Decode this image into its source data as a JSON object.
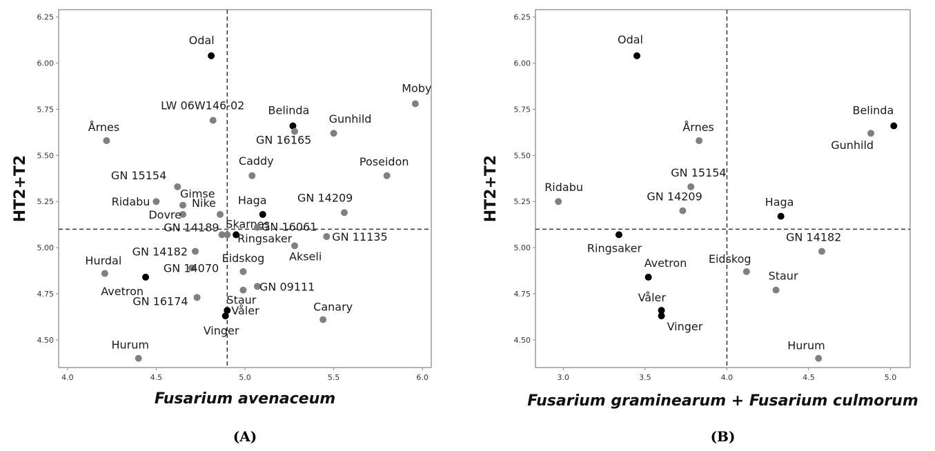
{
  "colors": {
    "highlight": "#000000",
    "normal": "#808080",
    "frame": "#8c8c8c",
    "refline": "#333333"
  },
  "chart_data": [
    {
      "type": "scatter",
      "panel_label": "(A)",
      "xlabel": "Fusarium avenaceum",
      "ylabel": "HT2+T2",
      "xlim": [
        3.95,
        6.05
      ],
      "ylim": [
        4.35,
        6.29
      ],
      "xticks": [
        4.0,
        4.5,
        5.0,
        5.5,
        6.0
      ],
      "xtick_labels": [
        "4.0",
        "4.5",
        "5.0",
        "5.5",
        "6.0"
      ],
      "yticks": [
        4.5,
        4.75,
        5.0,
        5.25,
        5.5,
        5.75,
        6.0,
        6.25
      ],
      "ytick_labels": [
        "4.50",
        "4.75",
        "5.00",
        "5.25",
        "5.50",
        "5.75",
        "6.00",
        "6.25"
      ],
      "vline": 4.9,
      "hline": 5.1,
      "grid": false,
      "points": [
        {
          "label": "Odal",
          "x": 4.81,
          "y": 6.04,
          "highlight": true
        },
        {
          "label": "Moby",
          "x": 5.96,
          "y": 5.78,
          "highlight": false
        },
        {
          "label": "LW 06W146-02",
          "x": 4.82,
          "y": 5.69,
          "highlight": false
        },
        {
          "label": "Belinda",
          "x": 5.27,
          "y": 5.66,
          "highlight": true
        },
        {
          "label": "GN 16165",
          "x": 5.28,
          "y": 5.63,
          "highlight": false
        },
        {
          "label": "Gunhild",
          "x": 5.5,
          "y": 5.62,
          "highlight": false
        },
        {
          "label": "Årnes",
          "x": 4.22,
          "y": 5.58,
          "highlight": false
        },
        {
          "label": "Caddy",
          "x": 5.04,
          "y": 5.39,
          "highlight": false
        },
        {
          "label": "Poseidon",
          "x": 5.8,
          "y": 5.39,
          "highlight": false
        },
        {
          "label": "GN 15154",
          "x": 4.62,
          "y": 5.33,
          "highlight": false
        },
        {
          "label": "Ridabu",
          "x": 4.5,
          "y": 5.25,
          "highlight": false
        },
        {
          "label": "Gimse",
          "x": 4.65,
          "y": 5.23,
          "highlight": false
        },
        {
          "label": "GN 14209",
          "x": 5.56,
          "y": 5.19,
          "highlight": false
        },
        {
          "label": "Nike",
          "x": 4.86,
          "y": 5.18,
          "highlight": false
        },
        {
          "label": "Dovre",
          "x": 4.65,
          "y": 5.18,
          "highlight": false
        },
        {
          "label": "Haga",
          "x": 5.1,
          "y": 5.18,
          "highlight": true
        },
        {
          "label": "Skarnes",
          "x": 4.9,
          "y": 5.07,
          "highlight": false
        },
        {
          "label": "GN 16061",
          "x": 5.07,
          "y": 5.11,
          "highlight": false
        },
        {
          "label": "GN 14189",
          "x": 4.87,
          "y": 5.07,
          "highlight": false
        },
        {
          "label": "Ringsaker",
          "x": 4.95,
          "y": 5.07,
          "highlight": true
        },
        {
          "label": "GN 11135",
          "x": 5.46,
          "y": 5.06,
          "highlight": false
        },
        {
          "label": "Akseli",
          "x": 5.28,
          "y": 5.01,
          "highlight": false
        },
        {
          "label": "GN 14182",
          "x": 4.72,
          "y": 4.98,
          "highlight": false
        },
        {
          "label": "Hurdal",
          "x": 4.21,
          "y": 4.86,
          "highlight": false
        },
        {
          "label": "Eidskog",
          "x": 4.99,
          "y": 4.87,
          "highlight": false
        },
        {
          "label": "GN 14070",
          "x": 4.7,
          "y": 4.89,
          "highlight": false
        },
        {
          "label": "Avetron",
          "x": 4.44,
          "y": 4.84,
          "highlight": true
        },
        {
          "label": "GN 09111",
          "x": 5.07,
          "y": 4.79,
          "highlight": false
        },
        {
          "label": "Staur",
          "x": 4.99,
          "y": 4.77,
          "highlight": false
        },
        {
          "label": "GN 16174",
          "x": 4.73,
          "y": 4.73,
          "highlight": false
        },
        {
          "label": "Våler",
          "x": 4.9,
          "y": 4.66,
          "highlight": true
        },
        {
          "label": "Vinger",
          "x": 4.89,
          "y": 4.63,
          "highlight": true
        },
        {
          "label": "Canary",
          "x": 5.44,
          "y": 4.61,
          "highlight": false
        },
        {
          "label": "Hurum",
          "x": 4.4,
          "y": 4.4,
          "highlight": false
        }
      ]
    },
    {
      "type": "scatter",
      "panel_label": "(B)",
      "xlabel": "Fusarium graminearum + Fusarium culmorum",
      "ylabel": "HT2+T2",
      "xlim": [
        2.83,
        5.12
      ],
      "ylim": [
        4.35,
        6.29
      ],
      "xticks": [
        3.0,
        3.5,
        4.0,
        4.5,
        5.0
      ],
      "xtick_labels": [
        "3.0",
        "3.5",
        "4.0",
        "4.5",
        "5.0"
      ],
      "yticks": [
        4.5,
        4.75,
        5.0,
        5.25,
        5.5,
        5.75,
        6.0,
        6.25
      ],
      "ytick_labels": [
        "4.50",
        "4.75",
        "5.00",
        "5.25",
        "5.50",
        "5.75",
        "6.00",
        "6.25"
      ],
      "vline": 4.0,
      "hline": 5.1,
      "grid": false,
      "points": [
        {
          "label": "Odal",
          "x": 3.45,
          "y": 6.04,
          "highlight": true
        },
        {
          "label": "Belinda",
          "x": 5.02,
          "y": 5.66,
          "highlight": true
        },
        {
          "label": "Gunhild",
          "x": 4.88,
          "y": 5.62,
          "highlight": false
        },
        {
          "label": "Årnes",
          "x": 3.83,
          "y": 5.58,
          "highlight": false
        },
        {
          "label": "GN 15154",
          "x": 3.78,
          "y": 5.33,
          "highlight": false
        },
        {
          "label": "Ridabu",
          "x": 2.97,
          "y": 5.25,
          "highlight": false
        },
        {
          "label": "GN 14209",
          "x": 3.73,
          "y": 5.2,
          "highlight": false
        },
        {
          "label": "Haga",
          "x": 4.33,
          "y": 5.17,
          "highlight": true
        },
        {
          "label": "Ringsaker",
          "x": 3.34,
          "y": 5.07,
          "highlight": true
        },
        {
          "label": "GN 14182",
          "x": 4.58,
          "y": 4.98,
          "highlight": false
        },
        {
          "label": "Eidskog",
          "x": 4.12,
          "y": 4.87,
          "highlight": false
        },
        {
          "label": "Avetron",
          "x": 3.52,
          "y": 4.84,
          "highlight": true
        },
        {
          "label": "Staur",
          "x": 4.3,
          "y": 4.77,
          "highlight": false
        },
        {
          "label": "Våler",
          "x": 3.6,
          "y": 4.66,
          "highlight": true
        },
        {
          "label": "Vinger",
          "x": 3.6,
          "y": 4.63,
          "highlight": true
        },
        {
          "label": "Hurum",
          "x": 4.56,
          "y": 4.4,
          "highlight": false
        }
      ]
    }
  ]
}
